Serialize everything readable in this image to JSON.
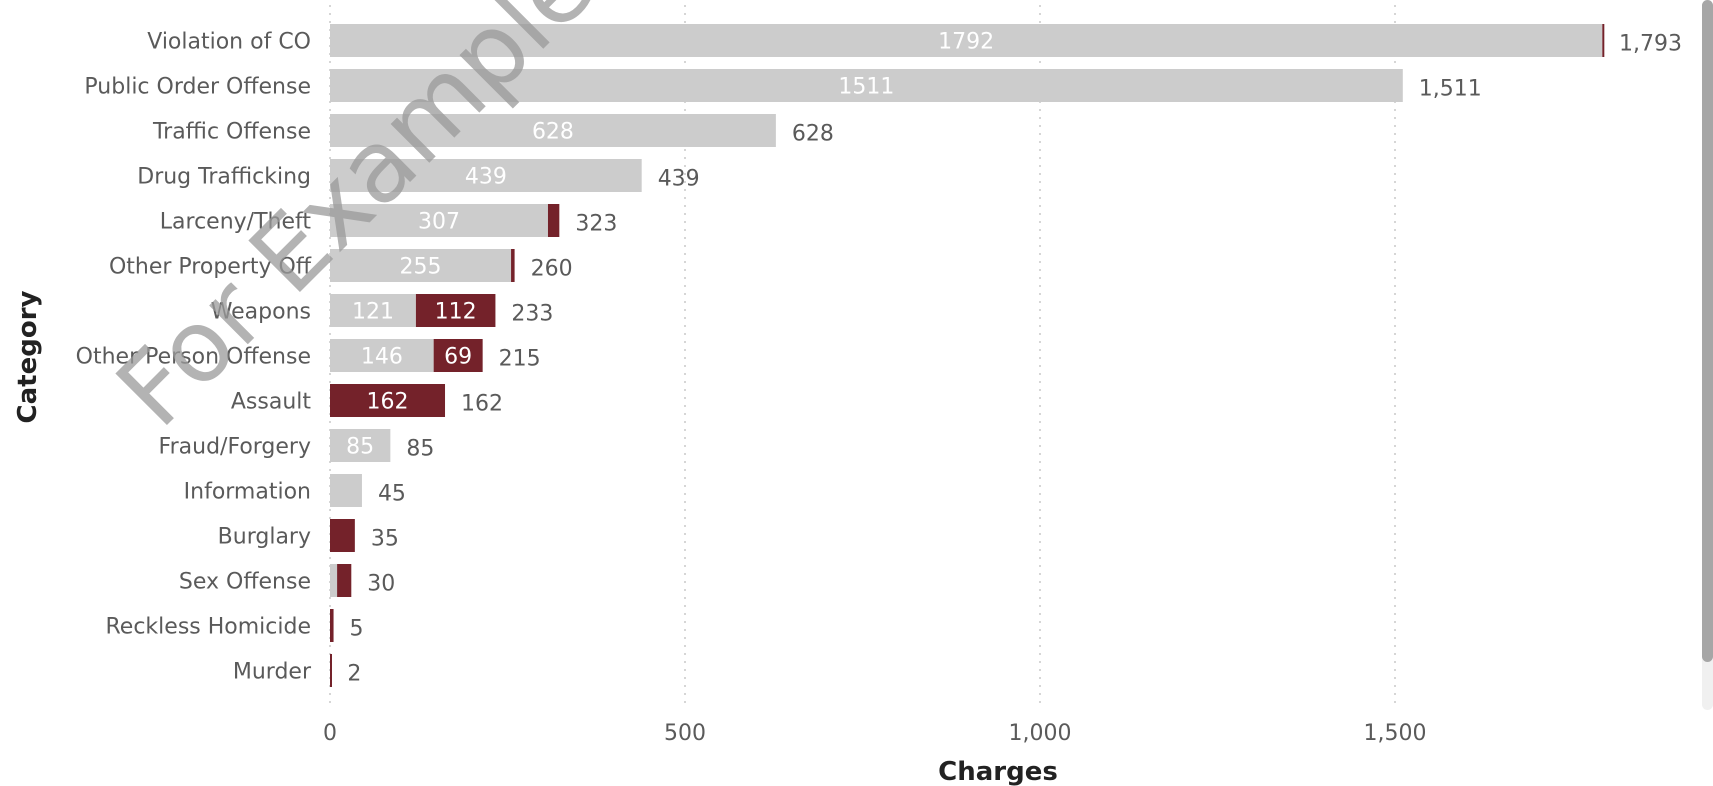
{
  "watermark": "For Example P",
  "chart_data": {
    "type": "bar",
    "orientation": "horizontal",
    "stacked": true,
    "xlabel": "Charges",
    "ylabel": "Category",
    "xlim": [
      0,
      1900
    ],
    "xticks": [
      0,
      500,
      1000,
      1500
    ],
    "xtick_labels": [
      "0",
      "500",
      "1,000",
      "1,500"
    ],
    "grid": "vertical dotted",
    "legend": "none",
    "categories": [
      "Violation of CO",
      "Public Order Offense",
      "Traffic Offense",
      "Drug Trafficking",
      "Larceny/Theft",
      "Other Property Off",
      "Weapons",
      "Other Person Offense",
      "Assault",
      "Fraud/Forgery",
      "Information",
      "Burglary",
      "Sex Offense",
      "Reckless Homicide",
      "Murder"
    ],
    "series": [
      {
        "color": "#cccccc",
        "values": [
          1792,
          1511,
          628,
          439,
          307,
          255,
          121,
          146,
          0,
          85,
          45,
          0,
          10,
          0,
          0
        ],
        "labels": [
          "1792",
          "1511",
          "628",
          "439",
          "307",
          "255",
          "121",
          "146",
          "",
          "85",
          "",
          "",
          "",
          "",
          ""
        ]
      },
      {
        "color": "#74222a",
        "values": [
          1,
          0,
          0,
          0,
          16,
          5,
          112,
          69,
          162,
          0,
          0,
          35,
          20,
          5,
          2
        ],
        "labels": [
          "",
          "",
          "",
          "",
          "",
          "",
          "112",
          "69",
          "162",
          "",
          "",
          "",
          "",
          "",
          ""
        ]
      }
    ],
    "totals": [
      "1,793",
      "1,511",
      "628",
      "439",
      "323",
      "260",
      "233",
      "215",
      "162",
      "85",
      "45",
      "35",
      "30",
      "5",
      "2"
    ]
  }
}
